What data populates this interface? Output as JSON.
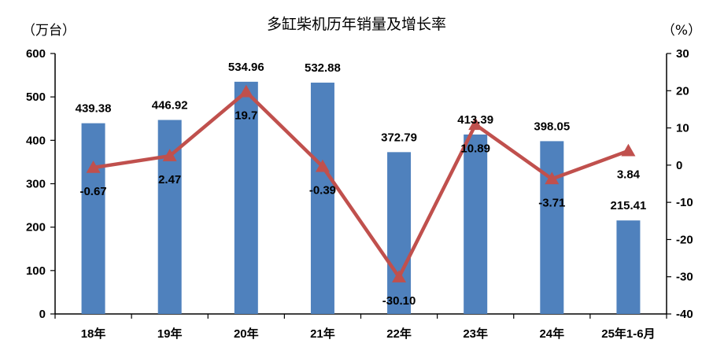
{
  "chart_data": {
    "type": "bar",
    "title": "多缸柴机历年销量及增长率",
    "left_unit": "（万台）",
    "right_unit": "（%）",
    "categories": [
      "18年",
      "19年",
      "20年",
      "21年",
      "22年",
      "23年",
      "24年",
      "25年1-6月"
    ],
    "series": [
      {
        "kind": "bar",
        "axis": "left",
        "color": "#4f81bd",
        "values": [
          439.38,
          446.92,
          534.96,
          532.88,
          372.79,
          413.39,
          398.05,
          215.41
        ],
        "labels": [
          "439.38",
          "446.92",
          "534.96",
          "532.88",
          "372.79",
          "413.39",
          "398.05",
          "215.41"
        ]
      },
      {
        "kind": "line",
        "axis": "right",
        "color": "#c0504d",
        "marker": "triangle",
        "values": [
          -0.67,
          2.47,
          19.7,
          -0.39,
          -30.1,
          10.89,
          -3.71,
          3.84
        ],
        "labels": [
          "-0.67",
          "2.47",
          "19.7",
          "-0.39",
          "-30.10",
          "10.89",
          "-3.71",
          "3.84"
        ]
      }
    ],
    "y_left": {
      "min": 0,
      "max": 600,
      "step": 100,
      "ticks": [
        "0",
        "100",
        "200",
        "300",
        "400",
        "500",
        "600"
      ]
    },
    "y_right": {
      "min": -40,
      "max": 30,
      "step": 10,
      "ticks": [
        "-40",
        "-30",
        "-20",
        "-10",
        "0",
        "10",
        "20",
        "30"
      ]
    },
    "grid": false,
    "legend": "none"
  }
}
